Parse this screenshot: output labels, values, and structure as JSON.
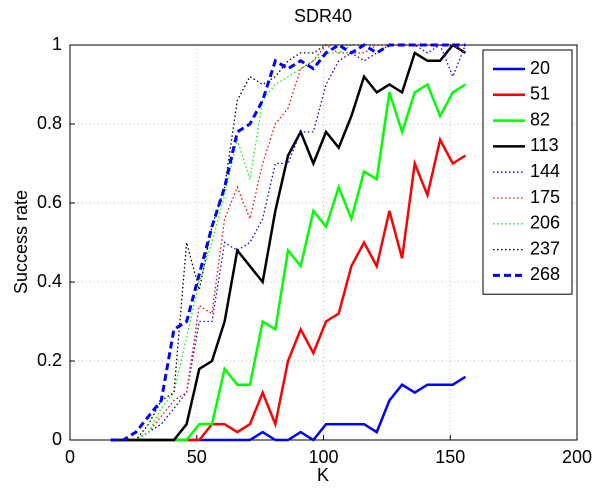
{
  "chart_data": {
    "type": "line",
    "title": "SDR40",
    "x_label": "K",
    "y_label": "Success rate",
    "x": [
      16,
      21,
      26,
      31,
      36,
      41,
      46,
      51,
      56,
      61,
      66,
      71,
      76,
      81,
      86,
      91,
      96,
      101,
      106,
      111,
      116,
      121,
      126,
      131,
      136,
      141,
      146,
      151,
      156
    ],
    "xlim": [
      0,
      200
    ],
    "xticks": [
      0,
      50,
      100,
      150,
      200
    ],
    "ylim": [
      0,
      1
    ],
    "yticks": [
      0,
      0.2,
      0.4,
      0.6,
      0.8,
      1
    ],
    "grid": true,
    "legend": "upper right",
    "series": [
      {
        "name": "20",
        "color": "#0000ff",
        "linestyle": "solid",
        "values": [
          0,
          0,
          0,
          0,
          0,
          0,
          0,
          0,
          0,
          0,
          0,
          0,
          0.02,
          0,
          0,
          0.02,
          0,
          0.04,
          0.04,
          0.04,
          0.04,
          0.02,
          0.1,
          0.14,
          0.12,
          0.14,
          0.14,
          0.14,
          0.16
        ]
      },
      {
        "name": "51",
        "color": "#ff0000",
        "linestyle": "solid",
        "values": [
          0,
          0,
          0,
          0,
          0,
          0,
          0,
          0,
          0.04,
          0.04,
          0.02,
          0.04,
          0.12,
          0.04,
          0.2,
          0.28,
          0.22,
          0.3,
          0.32,
          0.44,
          0.5,
          0.44,
          0.58,
          0.46,
          0.7,
          0.62,
          0.76,
          0.7,
          0.72
        ]
      },
      {
        "name": "82",
        "color": "#00ff00",
        "linestyle": "solid",
        "values": [
          0,
          0,
          0,
          0,
          0,
          0,
          0,
          0.04,
          0.04,
          0.18,
          0.14,
          0.14,
          0.3,
          0.28,
          0.48,
          0.44,
          0.58,
          0.54,
          0.64,
          0.56,
          0.68,
          0.66,
          0.88,
          0.78,
          0.88,
          0.9,
          0.82,
          0.88,
          0.9
        ]
      },
      {
        "name": "113",
        "color": "#000000",
        "linestyle": "solid",
        "values": [
          0,
          0,
          0,
          0,
          0,
          0,
          0.04,
          0.18,
          0.2,
          0.3,
          0.48,
          0.44,
          0.4,
          0.58,
          0.72,
          0.78,
          0.7,
          0.78,
          0.74,
          0.82,
          0.92,
          0.88,
          0.9,
          0.88,
          0.98,
          0.96,
          0.96,
          1,
          0.98
        ]
      },
      {
        "name": "144",
        "color": "#0000ff",
        "linestyle": "dotted",
        "values": [
          0,
          0,
          0,
          0.02,
          0.04,
          0.08,
          0.12,
          0.3,
          0.3,
          0.5,
          0.48,
          0.5,
          0.56,
          0.7,
          0.7,
          0.78,
          0.78,
          0.9,
          0.96,
          0.98,
          0.96,
          0.98,
          1,
          1,
          1,
          0.98,
          1,
          0.92,
          1
        ]
      },
      {
        "name": "175",
        "color": "#ff0000",
        "linestyle": "dotted",
        "values": [
          0,
          0,
          0,
          0.02,
          0.06,
          0.1,
          0.12,
          0.34,
          0.32,
          0.56,
          0.64,
          0.56,
          0.7,
          0.8,
          0.84,
          0.94,
          0.96,
          1,
          0.98,
          0.98,
          0.98,
          1,
          1,
          1,
          1,
          1,
          1,
          1,
          0.98
        ]
      },
      {
        "name": "206",
        "color": "#00ff00",
        "linestyle": "dotted",
        "values": [
          0,
          0,
          0,
          0.02,
          0.08,
          0.12,
          0.26,
          0.4,
          0.5,
          0.62,
          0.76,
          0.66,
          0.86,
          0.9,
          0.92,
          0.94,
          0.96,
          0.98,
          0.98,
          1,
          1,
          1,
          1,
          1,
          1,
          1,
          1,
          1,
          1
        ]
      },
      {
        "name": "237",
        "color": "#000000",
        "linestyle": "dotted",
        "values": [
          0,
          0,
          0,
          0.04,
          0.1,
          0.12,
          0.5,
          0.38,
          0.54,
          0.64,
          0.86,
          0.92,
          0.9,
          0.92,
          0.96,
          0.98,
          0.98,
          1,
          1,
          1,
          1,
          1,
          1,
          1,
          1,
          1,
          1,
          1,
          1
        ]
      },
      {
        "name": "268",
        "color": "#0000ff",
        "linestyle": "dashed",
        "values": [
          0,
          0,
          0.02,
          0.06,
          0.1,
          0.28,
          0.3,
          0.42,
          0.54,
          0.64,
          0.78,
          0.8,
          0.86,
          0.96,
          0.94,
          0.96,
          0.94,
          0.98,
          1,
          0.98,
          1,
          0.98,
          1,
          1,
          1,
          1,
          1,
          1,
          1
        ]
      }
    ]
  }
}
